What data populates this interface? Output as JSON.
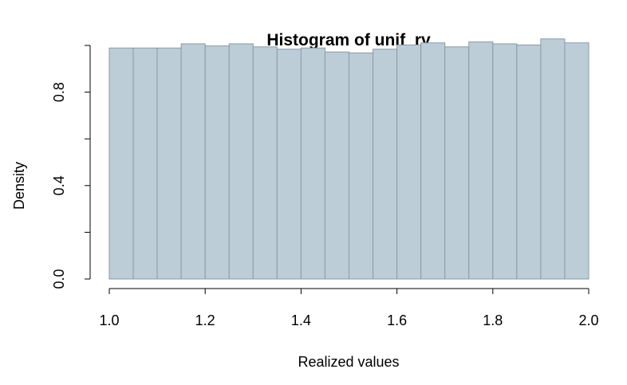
{
  "chart_data": {
    "type": "bar",
    "title": "Histogram of unif_rv",
    "xlabel": "Realized values",
    "ylabel": "Density",
    "xlim": [
      1.0,
      2.0
    ],
    "ylim": [
      0,
      1.02
    ],
    "bin_edges": [
      1.0,
      1.05,
      1.1,
      1.15,
      1.2,
      1.25,
      1.3,
      1.35,
      1.4,
      1.45,
      1.5,
      1.55,
      1.6,
      1.65,
      1.7,
      1.75,
      1.8,
      1.85,
      1.9,
      1.95,
      2.0
    ],
    "values": [
      0.989,
      0.989,
      0.989,
      1.007,
      0.998,
      1.007,
      0.994,
      0.984,
      0.989,
      0.972,
      0.968,
      0.984,
      1.002,
      1.011,
      0.994,
      1.015,
      1.007,
      1.002,
      1.028,
      1.011
    ],
    "x_ticks": [
      "1.0",
      "1.2",
      "1.4",
      "1.6",
      "1.8",
      "2.0"
    ],
    "y_ticks": [
      "0.0",
      "0.4",
      "0.8"
    ],
    "bar_fill": "#bccdd8",
    "bar_stroke": "#8a9aa6",
    "grid": false
  }
}
